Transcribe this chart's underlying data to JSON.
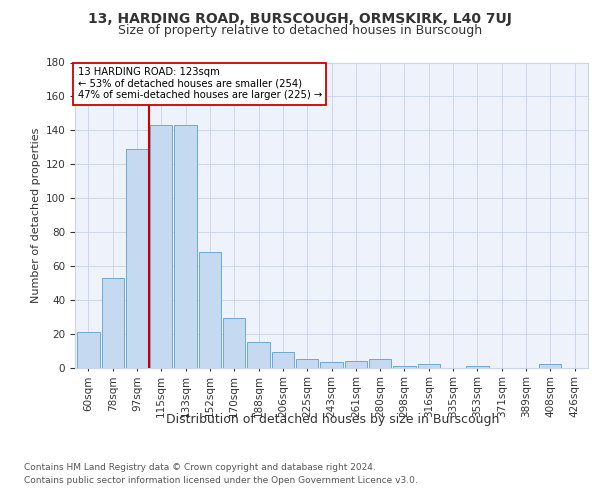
{
  "title": "13, HARDING ROAD, BURSCOUGH, ORMSKIRK, L40 7UJ",
  "subtitle": "Size of property relative to detached houses in Burscough",
  "xlabel": "Distribution of detached houses by size in Burscough",
  "ylabel": "Number of detached properties",
  "categories": [
    "60sqm",
    "78sqm",
    "97sqm",
    "115sqm",
    "133sqm",
    "152sqm",
    "170sqm",
    "188sqm",
    "206sqm",
    "225sqm",
    "243sqm",
    "261sqm",
    "280sqm",
    "298sqm",
    "316sqm",
    "335sqm",
    "353sqm",
    "371sqm",
    "389sqm",
    "408sqm",
    "426sqm"
  ],
  "values": [
    21,
    53,
    129,
    143,
    143,
    68,
    29,
    15,
    9,
    5,
    3,
    4,
    5,
    1,
    2,
    0,
    1,
    0,
    0,
    2,
    0
  ],
  "bar_color": "#c5d9f0",
  "bar_edge_color": "#6aaad4",
  "vline_x_bar_index": 3,
  "vline_color": "#cc0000",
  "annotation_title": "13 HARDING ROAD: 123sqm",
  "annotation_line2": "← 53% of detached houses are smaller (254)",
  "annotation_line3": "47% of semi-detached houses are larger (225) →",
  "annotation_box_color": "#ffffff",
  "annotation_box_edge": "#cc0000",
  "ylim": [
    0,
    180
  ],
  "yticks": [
    0,
    20,
    40,
    60,
    80,
    100,
    120,
    140,
    160,
    180
  ],
  "footer1": "Contains HM Land Registry data © Crown copyright and database right 2024.",
  "footer2": "Contains public sector information licensed under the Open Government Licence v3.0.",
  "plot_bg": "#eef2fa",
  "fig_bg": "#ffffff",
  "title_fontsize": 10,
  "subtitle_fontsize": 9,
  "ylabel_fontsize": 8,
  "xlabel_fontsize": 9,
  "tick_fontsize": 7.5,
  "footer_fontsize": 6.5
}
